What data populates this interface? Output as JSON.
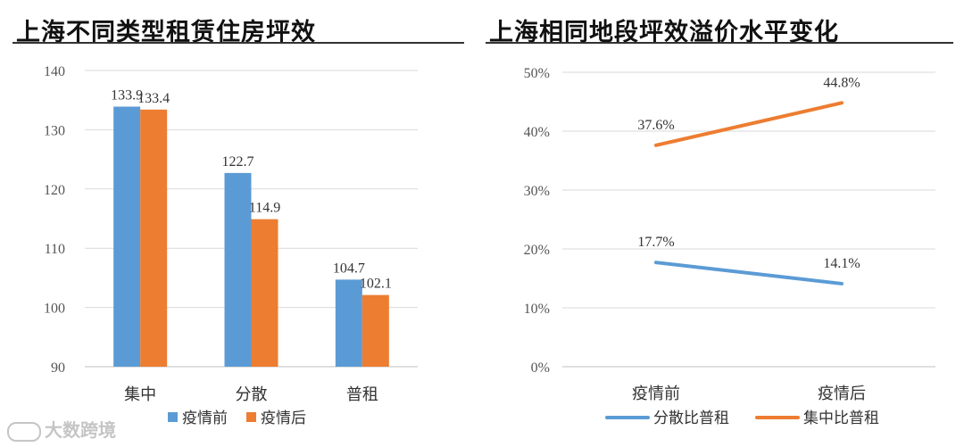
{
  "left_title": "上海不同类型租赁住房坪效",
  "right_title": "上海相同地段坪效溢价水平变化",
  "watermark": "大数跨境",
  "colors": {
    "blue": "#5b9bd5",
    "orange": "#ed7d31",
    "grid": "#d9d9d9",
    "axis": "#bfbfbf"
  },
  "chart_data": [
    {
      "type": "bar",
      "title": "上海不同类型租赁住房坪效",
      "categories": [
        "集中",
        "分散",
        "普租"
      ],
      "series": [
        {
          "name": "疫情前",
          "values": [
            133.9,
            122.7,
            104.7
          ],
          "labels": [
            "133.9",
            "122.7",
            "104.7"
          ],
          "color": "#5b9bd5"
        },
        {
          "name": "疫情后",
          "values": [
            133.4,
            114.9,
            102.1
          ],
          "labels": [
            "133.4",
            "114.9",
            "102.1"
          ],
          "color": "#ed7d31"
        }
      ],
      "ylim": [
        90,
        140
      ],
      "yticks": [
        "90",
        "100",
        "110",
        "120",
        "130",
        "140"
      ],
      "grid": true,
      "legend": "bottom"
    },
    {
      "type": "line",
      "title": "上海相同地段坪效溢价水平变化",
      "categories": [
        "疫情前",
        "疫情后"
      ],
      "series": [
        {
          "name": "分散比普租",
          "values": [
            17.7,
            14.1
          ],
          "labels": [
            "17.7%",
            "14.1%"
          ],
          "color": "#5b9bd5"
        },
        {
          "name": "集中比普租",
          "values": [
            37.6,
            44.8
          ],
          "labels": [
            "37.6%",
            "44.8%"
          ],
          "color": "#ed7d31"
        }
      ],
      "ylim": [
        0,
        50
      ],
      "yticks": [
        "0%",
        "10%",
        "20%",
        "30%",
        "40%",
        "50%"
      ],
      "grid": true,
      "legend": "bottom"
    }
  ]
}
